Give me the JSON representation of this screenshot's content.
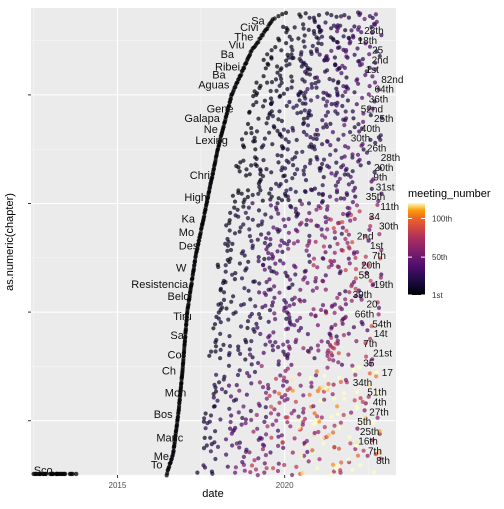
{
  "chart_data": {
    "type": "scatter",
    "title": "",
    "xlabel": "date",
    "ylabel": "as.numeric(chapter)",
    "x_ticks": [
      "2015",
      "2020"
    ],
    "xlim": [
      "2012-06-01",
      "2023-05-01"
    ],
    "ylim": [
      0,
      860
    ],
    "color_scale": {
      "name": "meeting_number",
      "type": "continuous",
      "palette": "inferno",
      "labels": [
        "1st",
        "50th",
        "100th"
      ],
      "label_values": [
        1,
        50,
        100
      ],
      "range": [
        1,
        120
      ],
      "low_color": "#000004",
      "mid_color": "#b73779",
      "high_color": "#fcfdbf"
    },
    "series": [
      {
        "chapter_labels": [
          {
            "label": "Sco",
            "date": "2012-07-01",
            "chapter": 2
          },
          {
            "label": "To",
            "date": "2016-01-01",
            "chapter": 12
          },
          {
            "label": "Me",
            "date": "2016-02-01",
            "chapter": 28
          },
          {
            "label": "Manc",
            "date": "2016-03-01",
            "chapter": 62
          },
          {
            "label": "Bos",
            "date": "2016-02-01",
            "chapter": 105
          },
          {
            "label": "Mon",
            "date": "2016-06-01",
            "chapter": 145
          },
          {
            "label": "Ch",
            "date": "2016-05-01",
            "chapter": 185
          },
          {
            "label": "Co",
            "date": "2016-07-01",
            "chapter": 215
          },
          {
            "label": "Sa",
            "date": "2016-08-01",
            "chapter": 250
          },
          {
            "label": "Tiru",
            "date": "2016-09-01",
            "chapter": 285
          },
          {
            "label": "Belo",
            "date": "2016-07-01",
            "chapter": 322
          },
          {
            "label": "Resistencia",
            "date": "2015-06-01",
            "chapter": 344
          },
          {
            "label": "W",
            "date": "2016-10-01",
            "chapter": 375
          },
          {
            "label": "Des",
            "date": "2016-11-01",
            "chapter": 415
          },
          {
            "label": "Mo",
            "date": "2016-11-01",
            "chapter": 440
          },
          {
            "label": "Ka",
            "date": "2016-12-01",
            "chapter": 465
          },
          {
            "label": "High",
            "date": "2017-01-01",
            "chapter": 505
          },
          {
            "label": "Chri",
            "date": "2017-03-01",
            "chapter": 545
          },
          {
            "label": "Lexing",
            "date": "2017-05-01",
            "chapter": 610
          },
          {
            "label": "Galapa",
            "date": "2017-01-01",
            "chapter": 650
          },
          {
            "label": "Ne",
            "date": "2017-08-01",
            "chapter": 630
          },
          {
            "label": "Gene",
            "date": "2017-09-01",
            "chapter": 668
          },
          {
            "label": "Aguas",
            "date": "2017-06-01",
            "chapter": 712
          },
          {
            "label": "Ba",
            "date": "2017-11-01",
            "chapter": 730
          },
          {
            "label": "Ribei",
            "date": "2017-12-01",
            "chapter": 745
          },
          {
            "label": "Ba",
            "date": "2018-02-01",
            "chapter": 768
          },
          {
            "label": "Viu",
            "date": "2018-05-01",
            "chapter": 785
          },
          {
            "label": "The",
            "date": "2018-07-01",
            "chapter": 800
          },
          {
            "label": "Civi",
            "date": "2018-09-01",
            "chapter": 818
          },
          {
            "label": "Sa",
            "date": "2019-01-01",
            "chapter": 830
          }
        ]
      },
      {
        "meeting_labels": [
          "8th",
          "7th",
          "16th",
          "25th",
          "5th",
          "27th",
          "4th",
          "51th",
          "34th",
          "17",
          "35",
          "21st",
          "7th",
          "14t",
          "54th",
          "66th",
          "20",
          "39th",
          "19th",
          "58",
          "20th",
          "7th",
          "1st",
          "2nd",
          "30th",
          "34",
          "11th",
          "35th",
          "31st",
          "9th",
          "20th",
          "28th",
          "26th",
          "30th",
          "40th",
          "25th",
          "52nd",
          "36th",
          "64th",
          "82nd",
          "1st",
          "2nd",
          "25",
          "18th",
          "28th"
        ]
      }
    ]
  }
}
